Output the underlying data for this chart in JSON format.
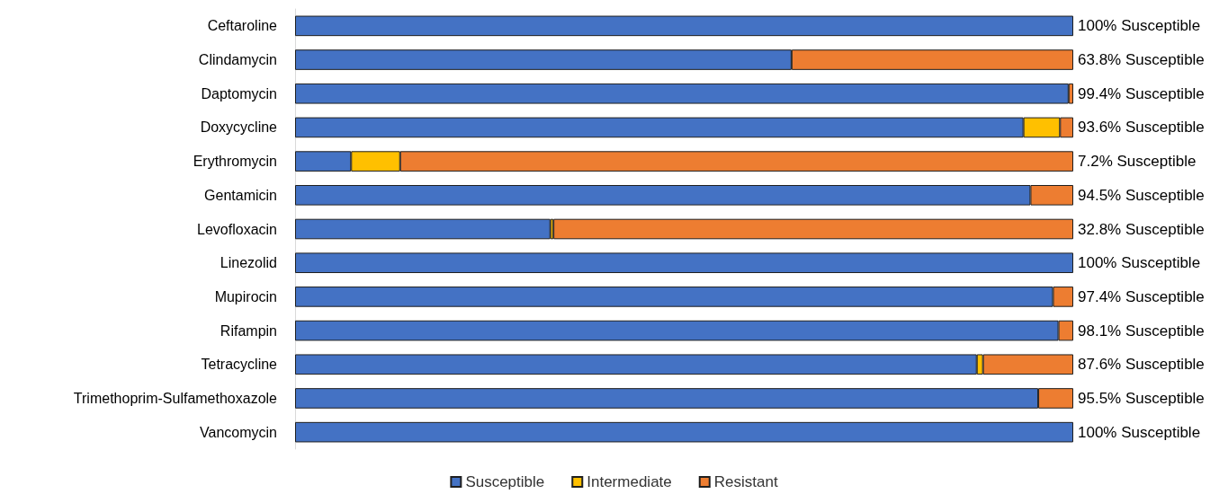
{
  "chart_data": {
    "type": "bar",
    "orientation": "horizontal",
    "stacked": true,
    "categories": [
      "Ceftaroline",
      "Clindamycin",
      "Daptomycin",
      "Doxycycline",
      "Erythromycin",
      "Gentamicin",
      "Levofloxacin",
      "Linezolid",
      "Mupirocin",
      "Rifampin",
      "Tetracycline",
      "Trimethoprim-Sulfamethoxazole",
      "Vancomycin"
    ],
    "series": [
      {
        "name": "Susceptible",
        "color": "#4472c4",
        "values": [
          100,
          63.8,
          99.4,
          93.6,
          7.2,
          94.5,
          32.8,
          100,
          97.4,
          98.1,
          87.6,
          95.5,
          100
        ],
        "value_labels": [
          "100% Susceptible",
          "63.8% Susceptible",
          "99.4% Susceptible",
          "93.6% Susceptible",
          "7.2% Susceptible",
          "94.5% Susceptible",
          "32.8% Susceptible",
          "100% Susceptible",
          "97.4% Susceptible",
          "98.1% Susceptible",
          "87.6% Susceptible",
          "95.5% Susceptible",
          "100% Susceptible"
        ]
      },
      {
        "name": "Intermediate",
        "color": "#ffc000",
        "values": [
          null,
          null,
          null,
          4.7,
          6.3,
          null,
          0.4,
          null,
          null,
          null,
          0.8,
          null,
          null
        ]
      },
      {
        "name": "Resistant",
        "color": "#ed7d31",
        "values": [
          null,
          36.2,
          0.6,
          1.7,
          86.5,
          5.5,
          66.8,
          null,
          2.6,
          1.9,
          11.6,
          4.5,
          null
        ]
      }
    ],
    "xlim": [
      0,
      100
    ],
    "tick_labels": "y",
    "legend": "bottom"
  }
}
